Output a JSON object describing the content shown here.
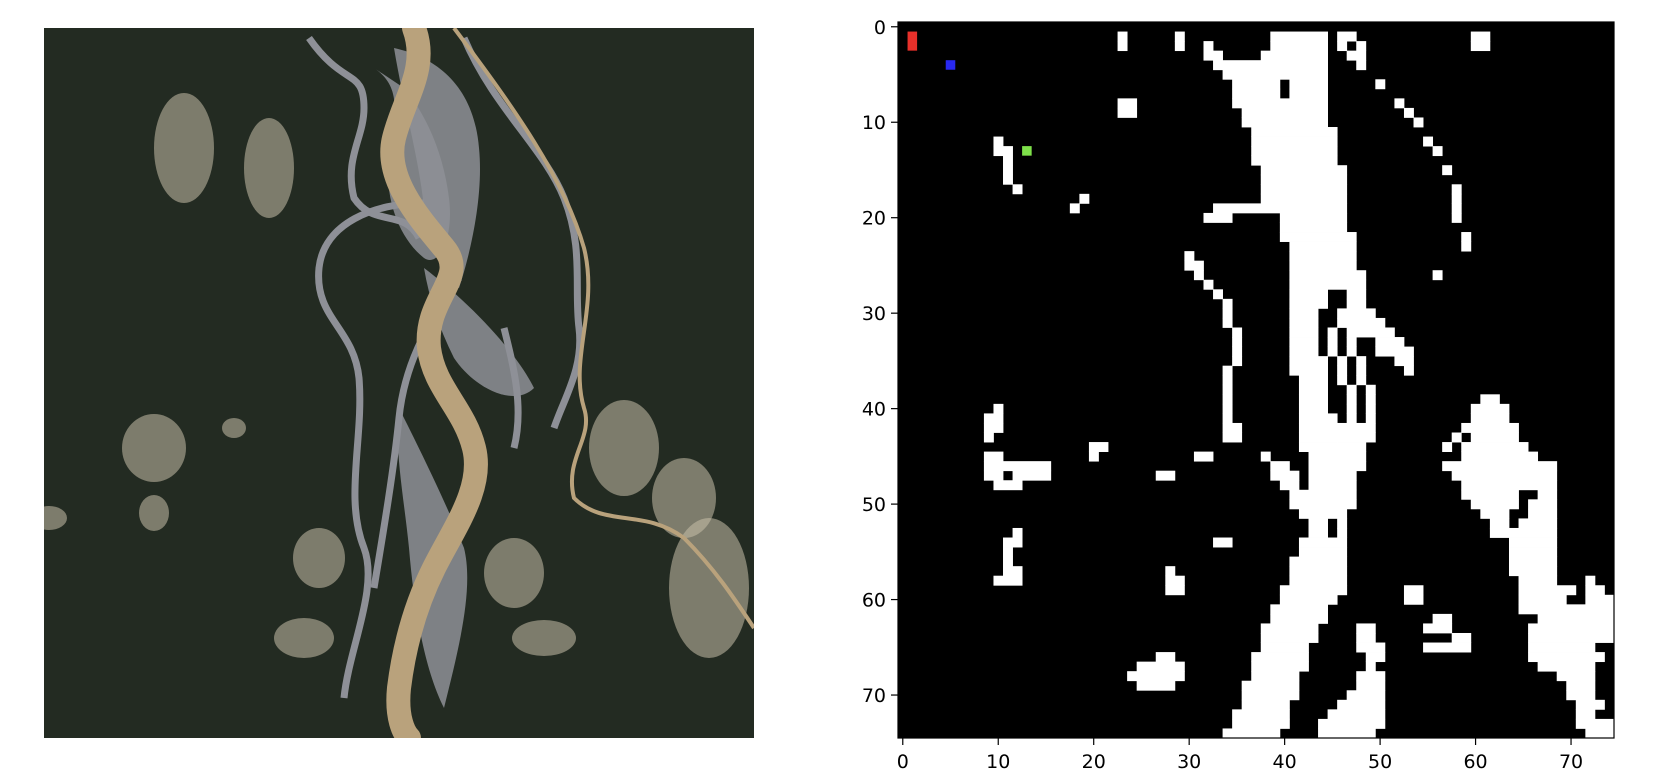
{
  "chart_data": [
    {
      "type": "image",
      "colors": {
        "forest": "#232b22",
        "river_water": "#b9a27c",
        "gravel_bars": "#8e9097",
        "mining_clearings": "#c8c0aa"
      }
    },
    {
      "type": "heatmap",
      "xlim": [
        -0.5,
        74.5
      ],
      "ylim": [
        74.5,
        -0.5
      ],
      "y_axis_inverted": true,
      "grid": false,
      "x_ticks": [
        0,
        10,
        20,
        30,
        40,
        50,
        60,
        70
      ],
      "y_ticks": [
        0,
        10,
        20,
        30,
        40,
        50,
        60,
        70
      ],
      "x_tick_labels": [
        "0",
        "10",
        "20",
        "30",
        "40",
        "50",
        "60",
        "70"
      ],
      "y_tick_labels": [
        "0",
        "10",
        "20",
        "30",
        "40",
        "50",
        "60",
        "70"
      ],
      "grid_size": [
        75,
        75
      ],
      "colors": {
        "background": "#000000",
        "foreground": "#ffffff"
      },
      "white_runs": [
        [
          1,
          23,
          23
        ],
        [
          2,
          23,
          23
        ],
        [
          1,
          29,
          29
        ],
        [
          2,
          29,
          29
        ],
        [
          1,
          39,
          44
        ],
        [
          1,
          46,
          47
        ],
        [
          1,
          60,
          61
        ],
        [
          2,
          60,
          61
        ],
        [
          2,
          32,
          32
        ],
        [
          2,
          39,
          44
        ],
        [
          2,
          46,
          46
        ],
        [
          2,
          48,
          48
        ],
        [
          3,
          32,
          33
        ],
        [
          3,
          38,
          44
        ],
        [
          3,
          47,
          48
        ],
        [
          4,
          33,
          37
        ],
        [
          4,
          38,
          44
        ],
        [
          4,
          48,
          48
        ],
        [
          5,
          34,
          44
        ],
        [
          6,
          35,
          39
        ],
        [
          6,
          41,
          44
        ],
        [
          6,
          50,
          50
        ],
        [
          7,
          35,
          39
        ],
        [
          7,
          41,
          44
        ],
        [
          8,
          23,
          24
        ],
        [
          8,
          35,
          44
        ],
        [
          8,
          52,
          52
        ],
        [
          9,
          23,
          24
        ],
        [
          9,
          36,
          44
        ],
        [
          9,
          53,
          53
        ],
        [
          10,
          36,
          44
        ],
        [
          10,
          54,
          54
        ],
        [
          11,
          37,
          45
        ],
        [
          12,
          10,
          10
        ],
        [
          12,
          37,
          45
        ],
        [
          12,
          55,
          55
        ],
        [
          13,
          10,
          11
        ],
        [
          13,
          37,
          45
        ],
        [
          13,
          56,
          56
        ],
        [
          14,
          11,
          11
        ],
        [
          14,
          37,
          45
        ],
        [
          15,
          11,
          11
        ],
        [
          15,
          38,
          46
        ],
        [
          15,
          57,
          57
        ],
        [
          16,
          11,
          11
        ],
        [
          16,
          38,
          46
        ],
        [
          17,
          12,
          12
        ],
        [
          17,
          38,
          46
        ],
        [
          17,
          58,
          58
        ],
        [
          18,
          19,
          19
        ],
        [
          18,
          38,
          46
        ],
        [
          18,
          58,
          58
        ],
        [
          19,
          18,
          18
        ],
        [
          19,
          33,
          46
        ],
        [
          19,
          58,
          58
        ],
        [
          20,
          32,
          34
        ],
        [
          20,
          40,
          46
        ],
        [
          20,
          58,
          58
        ],
        [
          21,
          40,
          46
        ],
        [
          22,
          40,
          47
        ],
        [
          22,
          59,
          59
        ],
        [
          23,
          41,
          47
        ],
        [
          23,
          59,
          59
        ],
        [
          24,
          30,
          30
        ],
        [
          24,
          41,
          47
        ],
        [
          25,
          30,
          31
        ],
        [
          25,
          41,
          47
        ],
        [
          26,
          31,
          31
        ],
        [
          26,
          41,
          48
        ],
        [
          26,
          56,
          56
        ],
        [
          27,
          32,
          32
        ],
        [
          27,
          41,
          48
        ],
        [
          28,
          33,
          33
        ],
        [
          28,
          41,
          44
        ],
        [
          28,
          47,
          48
        ],
        [
          29,
          34,
          34
        ],
        [
          29,
          41,
          44
        ],
        [
          29,
          47,
          48
        ],
        [
          30,
          34,
          34
        ],
        [
          30,
          41,
          43
        ],
        [
          30,
          46,
          49
        ],
        [
          31,
          34,
          34
        ],
        [
          31,
          41,
          43
        ],
        [
          31,
          46,
          50
        ],
        [
          32,
          35,
          35
        ],
        [
          32,
          41,
          43
        ],
        [
          32,
          45,
          45
        ],
        [
          32,
          47,
          51
        ],
        [
          33,
          35,
          35
        ],
        [
          33,
          41,
          43
        ],
        [
          33,
          45,
          45
        ],
        [
          33,
          47,
          47
        ],
        [
          33,
          50,
          52
        ],
        [
          34,
          35,
          35
        ],
        [
          34,
          41,
          43
        ],
        [
          34,
          45,
          45
        ],
        [
          34,
          47,
          47
        ],
        [
          34,
          50,
          53
        ],
        [
          35,
          35,
          35
        ],
        [
          35,
          41,
          44
        ],
        [
          35,
          46,
          46
        ],
        [
          35,
          48,
          48
        ],
        [
          35,
          52,
          53
        ],
        [
          36,
          34,
          34
        ],
        [
          36,
          41,
          44
        ],
        [
          36,
          46,
          46
        ],
        [
          36,
          48,
          48
        ],
        [
          36,
          53,
          53
        ],
        [
          37,
          34,
          34
        ],
        [
          37,
          42,
          44
        ],
        [
          37,
          46,
          46
        ],
        [
          37,
          48,
          48
        ],
        [
          38,
          34,
          34
        ],
        [
          38,
          42,
          44
        ],
        [
          38,
          47,
          47
        ],
        [
          38,
          49,
          49
        ],
        [
          39,
          34,
          34
        ],
        [
          39,
          42,
          44
        ],
        [
          39,
          47,
          47
        ],
        [
          39,
          49,
          49
        ],
        [
          39,
          61,
          62
        ],
        [
          40,
          10,
          10
        ],
        [
          40,
          34,
          34
        ],
        [
          40,
          42,
          44
        ],
        [
          40,
          47,
          47
        ],
        [
          40,
          49,
          49
        ],
        [
          40,
          60,
          63
        ],
        [
          41,
          9,
          10
        ],
        [
          41,
          34,
          34
        ],
        [
          41,
          42,
          45
        ],
        [
          41,
          47,
          47
        ],
        [
          41,
          49,
          49
        ],
        [
          41,
          60,
          63
        ],
        [
          42,
          9,
          10
        ],
        [
          42,
          34,
          35
        ],
        [
          42,
          42,
          45
        ],
        [
          42,
          46,
          49
        ],
        [
          42,
          59,
          64
        ],
        [
          43,
          9,
          9
        ],
        [
          43,
          34,
          35
        ],
        [
          43,
          42,
          45
        ],
        [
          43,
          46,
          49
        ],
        [
          43,
          58,
          58
        ],
        [
          43,
          60,
          64
        ],
        [
          44,
          20,
          21
        ],
        [
          44,
          42,
          48
        ],
        [
          44,
          57,
          57
        ],
        [
          44,
          59,
          65
        ],
        [
          45,
          9,
          10
        ],
        [
          45,
          20,
          20
        ],
        [
          45,
          31,
          32
        ],
        [
          45,
          38,
          38
        ],
        [
          45,
          43,
          48
        ],
        [
          45,
          59,
          66
        ],
        [
          46,
          9,
          15
        ],
        [
          46,
          39,
          40
        ],
        [
          46,
          43,
          48
        ],
        [
          46,
          57,
          68
        ],
        [
          47,
          9,
          10
        ],
        [
          47,
          12,
          15
        ],
        [
          47,
          39,
          41
        ],
        [
          47,
          43,
          47
        ],
        [
          47,
          58,
          68
        ],
        [
          48,
          10,
          12
        ],
        [
          48,
          40,
          41
        ],
        [
          48,
          43,
          47
        ],
        [
          48,
          59,
          68
        ],
        [
          49,
          41,
          47
        ],
        [
          49,
          59,
          64
        ],
        [
          49,
          67,
          68
        ],
        [
          50,
          41,
          47
        ],
        [
          50,
          60,
          64
        ],
        [
          50,
          66,
          68
        ],
        [
          51,
          42,
          46
        ],
        [
          51,
          61,
          63
        ],
        [
          51,
          66,
          68
        ],
        [
          52,
          43,
          44
        ],
        [
          52,
          46,
          46
        ],
        [
          52,
          62,
          63
        ],
        [
          52,
          65,
          68
        ],
        [
          53,
          12,
          12
        ],
        [
          53,
          43,
          44
        ],
        [
          53,
          46,
          46
        ],
        [
          53,
          62,
          68
        ],
        [
          54,
          11,
          12
        ],
        [
          54,
          42,
          46
        ],
        [
          54,
          64,
          68
        ],
        [
          55,
          11,
          11
        ],
        [
          55,
          42,
          46
        ],
        [
          55,
          64,
          68
        ],
        [
          56,
          11,
          11
        ],
        [
          56,
          41,
          46
        ],
        [
          56,
          64,
          68
        ],
        [
          57,
          11,
          12
        ],
        [
          57,
          41,
          46
        ],
        [
          57,
          64,
          68
        ],
        [
          58,
          10,
          12
        ],
        [
          58,
          41,
          46
        ],
        [
          58,
          65,
          68
        ],
        [
          58,
          72,
          72
        ],
        [
          59,
          40,
          46
        ],
        [
          59,
          65,
          70
        ],
        [
          59,
          72,
          73
        ],
        [
          60,
          40,
          45
        ],
        [
          60,
          65,
          69
        ],
        [
          60,
          72,
          74
        ],
        [
          61,
          39,
          44
        ],
        [
          61,
          65,
          74
        ],
        [
          62,
          39,
          44
        ],
        [
          62,
          67,
          74
        ],
        [
          63,
          38,
          43
        ],
        [
          63,
          48,
          49
        ],
        [
          63,
          66,
          74
        ],
        [
          64,
          38,
          43
        ],
        [
          64,
          48,
          49
        ],
        [
          64,
          66,
          74
        ],
        [
          65,
          38,
          42
        ],
        [
          65,
          48,
          50
        ],
        [
          65,
          66,
          72
        ],
        [
          66,
          37,
          42
        ],
        [
          66,
          49,
          50
        ],
        [
          66,
          66,
          73
        ],
        [
          67,
          37,
          42
        ],
        [
          67,
          49,
          49
        ],
        [
          67,
          67,
          72
        ],
        [
          68,
          37,
          41
        ],
        [
          68,
          48,
          50
        ],
        [
          68,
          69,
          72
        ],
        [
          69,
          36,
          41
        ],
        [
          69,
          48,
          50
        ],
        [
          69,
          70,
          72
        ],
        [
          70,
          36,
          41
        ],
        [
          70,
          47,
          50
        ],
        [
          70,
          70,
          72
        ],
        [
          71,
          36,
          40
        ],
        [
          71,
          46,
          50
        ],
        [
          71,
          71,
          73
        ],
        [
          72,
          35,
          40
        ],
        [
          72,
          45,
          50
        ],
        [
          72,
          71,
          72
        ],
        [
          73,
          35,
          40
        ],
        [
          73,
          44,
          50
        ],
        [
          73,
          71,
          74
        ],
        [
          74,
          34,
          39
        ],
        [
          74,
          44,
          49
        ],
        [
          74,
          72,
          74
        ],
        [
          57,
          28,
          28
        ],
        [
          58,
          28,
          29
        ],
        [
          59,
          28,
          29
        ],
        [
          66,
          27,
          28
        ],
        [
          67,
          25,
          29
        ],
        [
          68,
          24,
          29
        ],
        [
          69,
          25,
          28
        ],
        [
          54,
          33,
          33
        ],
        [
          54,
          34,
          34
        ],
        [
          47,
          27,
          28
        ],
        [
          59,
          53,
          54
        ],
        [
          60,
          53,
          54
        ],
        [
          62,
          56,
          57
        ],
        [
          63,
          55,
          57
        ],
        [
          64,
          58,
          59
        ],
        [
          65,
          55,
          59
        ]
      ],
      "colored_markers": [
        {
          "color": "#e8302a",
          "x": 1,
          "y_from": 1,
          "y_to": 2
        },
        {
          "color": "#2828f0",
          "x": 5,
          "y_from": 4,
          "y_to": 4
        },
        {
          "color": "#7ee04a",
          "x": 13,
          "y_from": 13,
          "y_to": 13
        }
      ]
    }
  ]
}
